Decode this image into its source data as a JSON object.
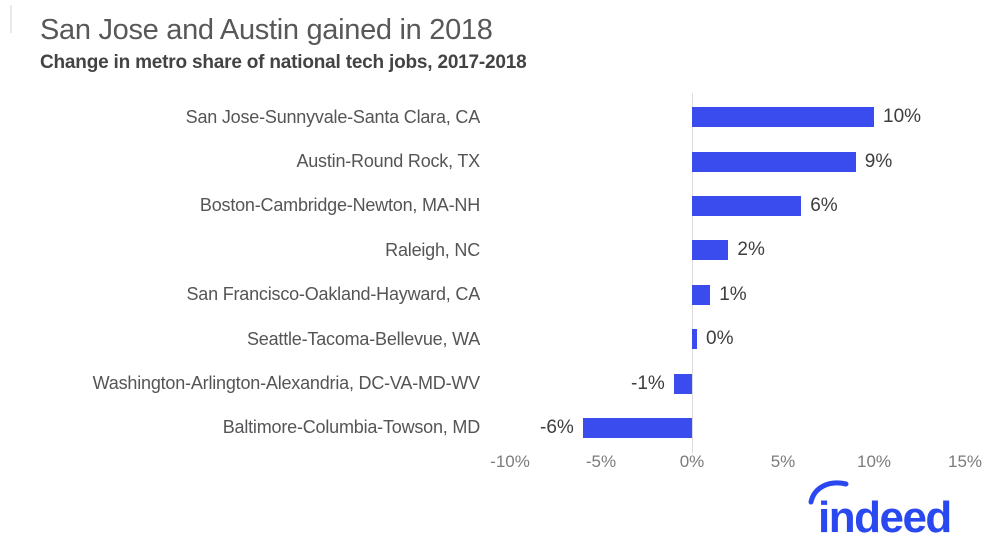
{
  "header": {
    "title": "San Jose and Austin gained in 2018",
    "subtitle": "Change in metro share of national tech jobs, 2017-2018"
  },
  "chart_data": {
    "type": "bar",
    "orientation": "horizontal",
    "title": "San Jose and Austin gained in 2018",
    "subtitle": "Change in metro share of national tech jobs, 2017-2018",
    "categories": [
      "San Jose-Sunnyvale-Santa Clara, CA",
      "Austin-Round Rock, TX",
      "Boston-Cambridge-Newton, MA-NH",
      "Raleigh, NC",
      "San Francisco-Oakland-Hayward, CA",
      "Seattle-Tacoma-Bellevue, WA",
      "Washington-Arlington-Alexandria, DC-VA-MD-WV",
      "Baltimore-Columbia-Towson, MD"
    ],
    "values": [
      10,
      9,
      6,
      2,
      1,
      0,
      -1,
      -6
    ],
    "value_labels": [
      "10%",
      "9%",
      "6%",
      "2%",
      "1%",
      "0%",
      "-1%",
      "-6%"
    ],
    "xlabel": "",
    "ylabel": "",
    "xlim": [
      -10,
      15
    ],
    "x_ticks": [
      "-10%",
      "-5%",
      "0%",
      "5%",
      "10%",
      "15%"
    ],
    "x_tick_values": [
      -10,
      -5,
      0,
      5,
      10,
      15
    ],
    "grid": "zero-line-only",
    "legend": "none",
    "bar_color": "#3a4cee"
  },
  "branding": {
    "logo_text": "indeed",
    "logo_color": "#2a48ef"
  }
}
